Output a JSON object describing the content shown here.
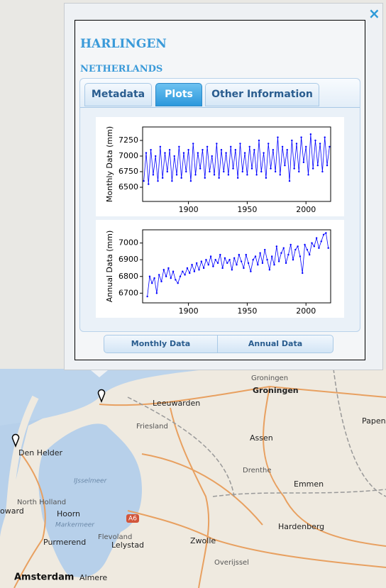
{
  "map": {
    "labels": [
      "Groningen",
      "Groningen",
      "Leeuwarden",
      "Friesland",
      "Papenb",
      "Assen",
      "Drenthe",
      "Emmen",
      "Den Helder",
      "IJsselmeer",
      "North Holland",
      "oward",
      "Hoorn",
      "Markermeer",
      "Flevoland",
      "Lelystad",
      "Purmerend",
      "Zwolle",
      "Hardenberg",
      "Overijssel",
      "Amsterdam",
      "Almere",
      "A6"
    ]
  },
  "popup": {
    "close": "×",
    "title": "HARLINGEN",
    "subtitle": "NETHERLANDS",
    "tabs": [
      "Metadata",
      "Plots",
      "Other Information"
    ],
    "active_tab": "Plots",
    "buttons": [
      "Monthly Data",
      "Annual Data"
    ]
  },
  "chart_data": [
    {
      "type": "line",
      "y_label": "Monthly Data (mm)",
      "color": "#0000ff",
      "markers": true,
      "x": [
        1862,
        1864,
        1866,
        1868,
        1870,
        1872,
        1874,
        1876,
        1878,
        1880,
        1882,
        1884,
        1886,
        1888,
        1890,
        1892,
        1894,
        1896,
        1898,
        1900,
        1902,
        1904,
        1906,
        1908,
        1910,
        1912,
        1914,
        1916,
        1918,
        1920,
        1922,
        1924,
        1926,
        1928,
        1930,
        1932,
        1934,
        1936,
        1938,
        1940,
        1942,
        1944,
        1946,
        1948,
        1950,
        1952,
        1954,
        1956,
        1958,
        1960,
        1962,
        1964,
        1966,
        1968,
        1970,
        1972,
        1974,
        1976,
        1978,
        1980,
        1982,
        1984,
        1986,
        1988,
        1990,
        1992,
        1994,
        1996,
        1998,
        2000,
        2002,
        2004,
        2006,
        2008,
        2010,
        2012,
        2014,
        2016,
        2018,
        2020
      ],
      "values": [
        6600,
        7050,
        6550,
        7100,
        6700,
        7000,
        6600,
        7150,
        6650,
        7050,
        6750,
        7100,
        6600,
        7000,
        6700,
        7150,
        6650,
        7050,
        6750,
        7100,
        6600,
        7200,
        6700,
        7050,
        6800,
        7100,
        6650,
        7150,
        6750,
        7000,
        6700,
        7200,
        6650,
        7100,
        6750,
        7050,
        6700,
        7150,
        6800,
        7100,
        6650,
        7200,
        6750,
        7050,
        6700,
        7150,
        6800,
        7100,
        6700,
        7250,
        6750,
        7050,
        6650,
        7200,
        6800,
        7100,
        6750,
        7300,
        6700,
        7150,
        6850,
        7100,
        6600,
        7250,
        6800,
        7200,
        6750,
        7300,
        6900,
        7150,
        6700,
        7350,
        6800,
        7250,
        6850,
        7200,
        6750,
        7300,
        6850,
        7150
      ],
      "xlim": [
        1861,
        2021
      ],
      "ylim": [
        6273,
        7466
      ],
      "xticks": [
        1900,
        1950,
        2000
      ],
      "yticks": [
        6500,
        6750,
        7000,
        7250
      ]
    },
    {
      "type": "line",
      "y_label": "Annual Data (mm)",
      "color": "#0000ff",
      "markers": true,
      "x": [
        1865,
        1867,
        1869,
        1871,
        1873,
        1875,
        1877,
        1879,
        1881,
        1883,
        1885,
        1887,
        1889,
        1891,
        1893,
        1895,
        1897,
        1899,
        1901,
        1903,
        1905,
        1907,
        1909,
        1911,
        1913,
        1915,
        1917,
        1919,
        1921,
        1923,
        1925,
        1927,
        1929,
        1931,
        1933,
        1935,
        1937,
        1939,
        1941,
        1943,
        1945,
        1947,
        1949,
        1951,
        1953,
        1955,
        1957,
        1959,
        1961,
        1963,
        1965,
        1967,
        1969,
        1971,
        1973,
        1975,
        1977,
        1979,
        1981,
        1983,
        1985,
        1987,
        1989,
        1991,
        1993,
        1995,
        1997,
        1999,
        2001,
        2003,
        2005,
        2007,
        2009,
        2011,
        2013,
        2015,
        2017,
        2019
      ],
      "values": [
        6680,
        6800,
        6760,
        6790,
        6700,
        6810,
        6770,
        6840,
        6800,
        6850,
        6790,
        6830,
        6780,
        6760,
        6800,
        6830,
        6810,
        6850,
        6820,
        6870,
        6830,
        6880,
        6840,
        6890,
        6850,
        6900,
        6870,
        6920,
        6860,
        6900,
        6880,
        6930,
        6850,
        6910,
        6880,
        6900,
        6840,
        6910,
        6870,
        6930,
        6890,
        6850,
        6930,
        6880,
        6830,
        6900,
        6920,
        6870,
        6940,
        6880,
        6960,
        6900,
        6840,
        6920,
        6870,
        6980,
        6890,
        6940,
        6970,
        6880,
        6930,
        6990,
        6900,
        6960,
        6980,
        6920,
        6820,
        6990,
        6960,
        6930,
        7000,
        6980,
        7030,
        6970,
        7010,
        7050,
        7060,
        6970
      ],
      "xlim": [
        1861,
        2021
      ],
      "ylim": [
        6642,
        7079
      ],
      "xticks": [
        1900,
        1950,
        2000
      ],
      "yticks": [
        6700,
        6800,
        6900,
        7000
      ]
    }
  ]
}
